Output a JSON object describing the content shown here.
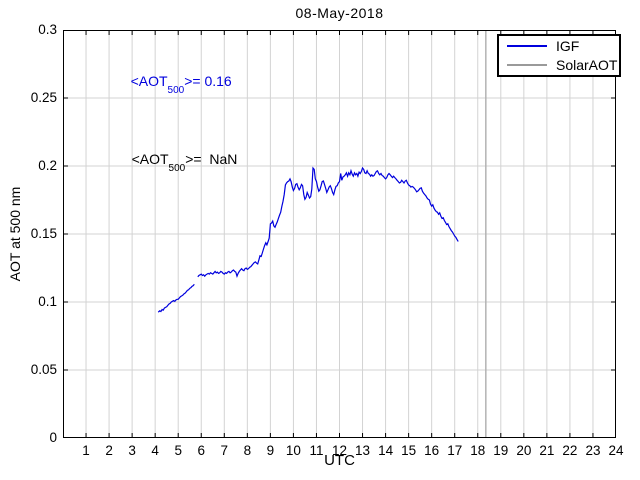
{
  "chart_data": {
    "type": "line",
    "title": "08-May-2018",
    "xlabel": "UTC",
    "ylabel": "AOT at 500 nm",
    "xlim": [
      0,
      24
    ],
    "ylim": [
      0,
      0.3
    ],
    "grid": true,
    "x_ticks": [
      1,
      2,
      3,
      4,
      5,
      6,
      7,
      8,
      9,
      10,
      11,
      12,
      13,
      14,
      15,
      16,
      17,
      18,
      19,
      20,
      21,
      22,
      23,
      24
    ],
    "y_ticks": [
      {
        "value": 0,
        "label": "0"
      },
      {
        "value": 0.05,
        "label": "0.05"
      },
      {
        "value": 0.1,
        "label": "0.1"
      },
      {
        "value": 0.15,
        "label": "0.15"
      },
      {
        "value": 0.2,
        "label": "0.2"
      },
      {
        "value": 0.25,
        "label": "0.25"
      },
      {
        "value": 0.3,
        "label": "0.3"
      }
    ],
    "colors": {
      "igf_line": "#0000DD",
      "solaraot_line": "#9a9a9a",
      "gridline": "#d3d3d3",
      "axis": "#000000",
      "marker_line": "#b3b3b3"
    },
    "legend": {
      "position": "top-right",
      "entries": [
        {
          "label": "IGF",
          "color": "#0000DD"
        },
        {
          "label": "SolarAOT",
          "color": "#9a9a9a"
        }
      ]
    },
    "annotations": [
      {
        "prefix": "<AOT",
        "sub": "500",
        "suffix": ">= 0.16",
        "color": "#0000DD"
      },
      {
        "prefix": "<AOT",
        "sub": "500",
        "suffix": ">=  NaN",
        "color": "#000000"
      }
    ],
    "vertical_gray_line": {
      "x": 18.35,
      "color": "#b3b3b3"
    },
    "series": [
      {
        "name": "IGF",
        "color": "#0000DD",
        "segments": [
          [
            [
              4.13,
              0.0925
            ],
            [
              4.2,
              0.0935
            ],
            [
              4.25,
              0.093
            ],
            [
              4.3,
              0.0945
            ],
            [
              4.35,
              0.094
            ],
            [
              4.4,
              0.0955
            ],
            [
              4.45,
              0.096
            ],
            [
              4.5,
              0.0965
            ],
            [
              4.55,
              0.0975
            ],
            [
              4.6,
              0.0985
            ],
            [
              4.65,
              0.099
            ],
            [
              4.7,
              0.1
            ],
            [
              4.75,
              0.1005
            ],
            [
              4.8,
              0.101
            ],
            [
              4.85,
              0.1005
            ],
            [
              4.9,
              0.1015
            ],
            [
              4.95,
              0.102
            ],
            [
              5.0,
              0.102
            ],
            [
              5.05,
              0.103
            ],
            [
              5.1,
              0.104
            ],
            [
              5.15,
              0.1045
            ],
            [
              5.2,
              0.105
            ],
            [
              5.25,
              0.106
            ],
            [
              5.3,
              0.1065
            ],
            [
              5.35,
              0.1075
            ],
            [
              5.4,
              0.1085
            ],
            [
              5.45,
              0.109
            ],
            [
              5.5,
              0.11
            ],
            [
              5.55,
              0.1105
            ],
            [
              5.6,
              0.1115
            ],
            [
              5.65,
              0.112
            ],
            [
              5.7,
              0.113
            ]
          ],
          [
            [
              5.85,
              0.1185
            ],
            [
              5.9,
              0.1195
            ],
            [
              5.95,
              0.12
            ],
            [
              6.0,
              0.1205
            ],
            [
              6.05,
              0.1195
            ],
            [
              6.1,
              0.12
            ],
            [
              6.15,
              0.119
            ],
            [
              6.2,
              0.12
            ],
            [
              6.25,
              0.1205
            ],
            [
              6.3,
              0.121
            ],
            [
              6.35,
              0.1205
            ],
            [
              6.4,
              0.1215
            ],
            [
              6.45,
              0.121
            ],
            [
              6.5,
              0.1205
            ],
            [
              6.55,
              0.1215
            ],
            [
              6.6,
              0.1225
            ],
            [
              6.65,
              0.1215
            ],
            [
              6.7,
              0.122
            ],
            [
              6.75,
              0.121
            ],
            [
              6.8,
              0.1215
            ],
            [
              6.85,
              0.1225
            ],
            [
              6.9,
              0.122
            ],
            [
              6.95,
              0.121
            ],
            [
              7.0,
              0.1205
            ],
            [
              7.05,
              0.1215
            ],
            [
              7.1,
              0.121
            ],
            [
              7.15,
              0.122
            ],
            [
              7.2,
              0.1225
            ],
            [
              7.25,
              0.1215
            ],
            [
              7.3,
              0.122
            ],
            [
              7.35,
              0.123
            ],
            [
              7.4,
              0.1235
            ],
            [
              7.45,
              0.1225
            ],
            [
              7.5,
              0.122
            ],
            [
              7.55,
              0.119
            ],
            [
              7.6,
              0.121
            ],
            [
              7.65,
              0.1225
            ],
            [
              7.7,
              0.1235
            ],
            [
              7.75,
              0.1245
            ],
            [
              7.8,
              0.1235
            ],
            [
              7.85,
              0.123
            ],
            [
              7.9,
              0.1245
            ],
            [
              7.95,
              0.125
            ],
            [
              8.0,
              0.124
            ],
            [
              8.05,
              0.1245
            ],
            [
              8.1,
              0.1255
            ],
            [
              8.15,
              0.126
            ],
            [
              8.2,
              0.127
            ],
            [
              8.25,
              0.128
            ],
            [
              8.3,
              0.129
            ],
            [
              8.35,
              0.1295
            ],
            [
              8.4,
              0.1285
            ],
            [
              8.45,
              0.128
            ],
            [
              8.5,
              0.131
            ],
            [
              8.55,
              0.134
            ],
            [
              8.6,
              0.1335
            ],
            [
              8.65,
              0.136
            ],
            [
              8.7,
              0.139
            ],
            [
              8.75,
              0.1415
            ],
            [
              8.8,
              0.1435
            ],
            [
              8.85,
              0.142
            ],
            [
              8.9,
              0.1445
            ],
            [
              8.95,
              0.147
            ],
            [
              9.0,
              0.1575
            ],
            [
              9.05,
              0.158
            ],
            [
              9.1,
              0.1595
            ],
            [
              9.15,
              0.156
            ],
            [
              9.2,
              0.155
            ],
            [
              9.25,
              0.157
            ],
            [
              9.3,
              0.159
            ],
            [
              9.35,
              0.1615
            ],
            [
              9.4,
              0.164
            ],
            [
              9.45,
              0.166
            ],
            [
              9.5,
              0.1705
            ],
            [
              9.55,
              0.174
            ],
            [
              9.6,
              0.179
            ],
            [
              9.65,
              0.186
            ],
            [
              9.7,
              0.1875
            ],
            [
              9.75,
              0.1885
            ],
            [
              9.8,
              0.189
            ],
            [
              9.85,
              0.1905
            ],
            [
              9.9,
              0.1885
            ],
            [
              9.95,
              0.1845
            ],
            [
              10.0,
              0.182
            ],
            [
              10.05,
              0.1835
            ],
            [
              10.1,
              0.1865
            ],
            [
              10.15,
              0.187
            ],
            [
              10.2,
              0.1845
            ],
            [
              10.25,
              0.1825
            ],
            [
              10.3,
              0.184
            ],
            [
              10.35,
              0.1865
            ],
            [
              10.4,
              0.1855
            ],
            [
              10.45,
              0.179
            ],
            [
              10.5,
              0.1755
            ],
            [
              10.55,
              0.177
            ],
            [
              10.6,
              0.1805
            ],
            [
              10.65,
              0.1785
            ],
            [
              10.7,
              0.1765
            ],
            [
              10.75,
              0.1775
            ],
            [
              10.8,
              0.183
            ],
            [
              10.85,
              0.1985
            ],
            [
              10.9,
              0.1975
            ],
            [
              10.95,
              0.1905
            ],
            [
              11.0,
              0.1885
            ],
            [
              11.05,
              0.1845
            ],
            [
              11.1,
              0.1815
            ],
            [
              11.15,
              0.1825
            ],
            [
              11.2,
              0.1855
            ],
            [
              11.25,
              0.1885
            ],
            [
              11.3,
              0.189
            ],
            [
              11.35,
              0.1865
            ],
            [
              11.4,
              0.1835
            ],
            [
              11.45,
              0.1805
            ],
            [
              11.5,
              0.1825
            ],
            [
              11.55,
              0.1845
            ],
            [
              11.6,
              0.1855
            ],
            [
              11.65,
              0.1835
            ],
            [
              11.7,
              0.1805
            ],
            [
              11.75,
              0.179
            ],
            [
              11.8,
              0.1825
            ],
            [
              11.85,
              0.185
            ],
            [
              11.9,
              0.1855
            ],
            [
              11.95,
              0.1875
            ],
            [
              12.0,
              0.1885
            ],
            [
              12.05,
              0.1945
            ],
            [
              12.1,
              0.1895
            ],
            [
              12.15,
              0.192
            ],
            [
              12.2,
              0.1925
            ],
            [
              12.25,
              0.1935
            ],
            [
              12.3,
              0.195
            ],
            [
              12.35,
              0.1925
            ],
            [
              12.4,
              0.195
            ],
            [
              12.45,
              0.1935
            ],
            [
              12.5,
              0.1965
            ],
            [
              12.55,
              0.194
            ],
            [
              12.6,
              0.1925
            ],
            [
              12.65,
              0.195
            ],
            [
              12.7,
              0.1935
            ],
            [
              12.75,
              0.1945
            ],
            [
              12.8,
              0.1925
            ],
            [
              12.85,
              0.1955
            ],
            [
              12.9,
              0.1945
            ],
            [
              12.95,
              0.196
            ],
            [
              13.0,
              0.1985
            ],
            [
              13.05,
              0.1975
            ],
            [
              13.1,
              0.195
            ],
            [
              13.15,
              0.1945
            ],
            [
              13.2,
              0.1965
            ],
            [
              13.25,
              0.1945
            ],
            [
              13.3,
              0.194
            ],
            [
              13.35,
              0.1925
            ],
            [
              13.4,
              0.1935
            ],
            [
              13.45,
              0.1925
            ],
            [
              13.5,
              0.193
            ],
            [
              13.55,
              0.1945
            ],
            [
              13.6,
              0.196
            ],
            [
              13.65,
              0.1965
            ],
            [
              13.7,
              0.1945
            ],
            [
              13.75,
              0.1935
            ],
            [
              13.8,
              0.1945
            ],
            [
              13.85,
              0.193
            ],
            [
              13.9,
              0.1925
            ],
            [
              13.95,
              0.1915
            ],
            [
              14.0,
              0.1905
            ],
            [
              14.05,
              0.1915
            ],
            [
              14.1,
              0.1935
            ],
            [
              14.15,
              0.1945
            ],
            [
              14.2,
              0.1935
            ],
            [
              14.25,
              0.1925
            ],
            [
              14.3,
              0.1915
            ],
            [
              14.35,
              0.1925
            ],
            [
              14.4,
              0.1915
            ],
            [
              14.45,
              0.1905
            ],
            [
              14.5,
              0.1895
            ],
            [
              14.55,
              0.1885
            ],
            [
              14.6,
              0.1875
            ],
            [
              14.65,
              0.188
            ],
            [
              14.7,
              0.1895
            ],
            [
              14.75,
              0.1885
            ],
            [
              14.8,
              0.1875
            ],
            [
              14.85,
              0.189
            ],
            [
              14.9,
              0.1895
            ],
            [
              14.95,
              0.1875
            ],
            [
              15.0,
              0.186
            ],
            [
              15.05,
              0.1855
            ],
            [
              15.1,
              0.1845
            ],
            [
              15.15,
              0.185
            ],
            [
              15.2,
              0.1845
            ],
            [
              15.25,
              0.1835
            ],
            [
              15.3,
              0.1825
            ],
            [
              15.35,
              0.181
            ],
            [
              15.4,
              0.1815
            ],
            [
              15.45,
              0.1825
            ],
            [
              15.5,
              0.1835
            ],
            [
              15.55,
              0.184
            ],
            [
              15.6,
              0.1815
            ],
            [
              15.65,
              0.18
            ],
            [
              15.7,
              0.179
            ],
            [
              15.75,
              0.178
            ],
            [
              15.8,
              0.1765
            ],
            [
              15.85,
              0.1755
            ],
            [
              15.9,
              0.175
            ],
            [
              15.95,
              0.172
            ],
            [
              16.0,
              0.1705
            ],
            [
              16.05,
              0.1715
            ],
            [
              16.1,
              0.169
            ],
            [
              16.15,
              0.1675
            ],
            [
              16.2,
              0.1665
            ],
            [
              16.25,
              0.166
            ],
            [
              16.3,
              0.1645
            ],
            [
              16.35,
              0.1655
            ],
            [
              16.4,
              0.163
            ],
            [
              16.45,
              0.1615
            ],
            [
              16.5,
              0.162
            ],
            [
              16.55,
              0.16
            ],
            [
              16.6,
              0.1585
            ],
            [
              16.65,
              0.157
            ],
            [
              16.7,
              0.1575
            ],
            [
              16.75,
              0.1555
            ],
            [
              16.8,
              0.154
            ],
            [
              16.85,
              0.1525
            ],
            [
              16.9,
              0.1515
            ],
            [
              16.95,
              0.15
            ],
            [
              17.0,
              0.1485
            ],
            [
              17.05,
              0.1475
            ],
            [
              17.1,
              0.146
            ],
            [
              17.15,
              0.1445
            ]
          ]
        ]
      },
      {
        "name": "SolarAOT",
        "color": "#9a9a9a",
        "segments": []
      }
    ]
  }
}
